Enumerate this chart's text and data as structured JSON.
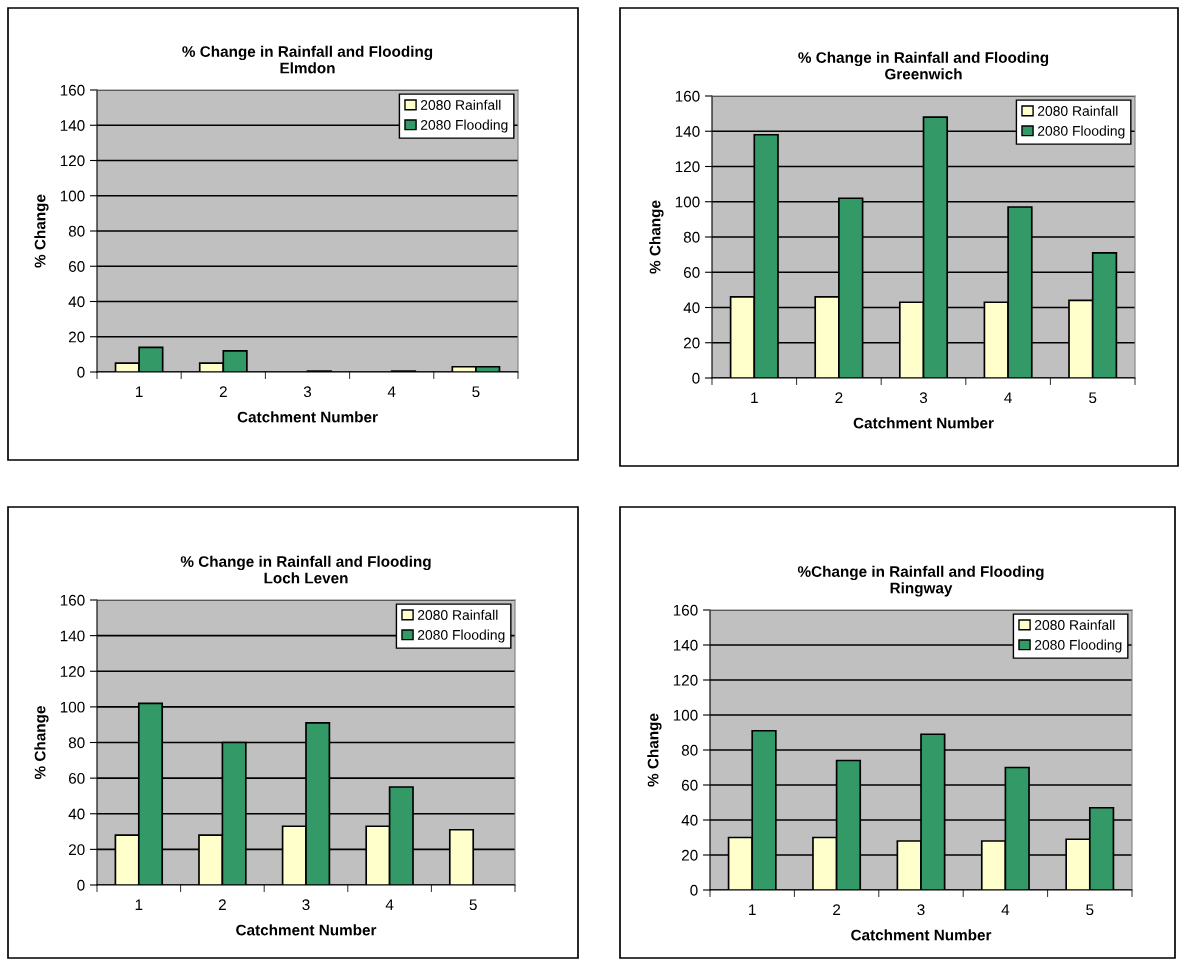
{
  "chart_data": [
    {
      "type": "bar",
      "title": "% Change in Rainfall and Flooding\nElmdon",
      "xlabel": "Catchment Number",
      "ylabel": "% Change",
      "categories": [
        "1",
        "2",
        "3",
        "4",
        "5"
      ],
      "series": [
        {
          "name": "2080 Rainfall",
          "color": "#ffffcc",
          "values": [
            5,
            5,
            null,
            null,
            3
          ]
        },
        {
          "name": "2080 Flooding",
          "color": "#339966",
          "values": [
            14,
            12,
            0.5,
            0.5,
            3
          ]
        }
      ],
      "ylim": [
        0,
        160
      ],
      "yticks": [
        0,
        20,
        40,
        60,
        80,
        100,
        120,
        140,
        160
      ],
      "grid": "y",
      "legend": "top right"
    },
    {
      "type": "bar",
      "title": "% Change in Rainfall and Flooding\nGreenwich",
      "xlabel": "Catchment Number",
      "ylabel": "% Change",
      "categories": [
        "1",
        "2",
        "3",
        "4",
        "5"
      ],
      "series": [
        {
          "name": "2080 Rainfall",
          "color": "#ffffcc",
          "values": [
            46,
            46,
            43,
            43,
            44
          ]
        },
        {
          "name": "2080 Flooding",
          "color": "#339966",
          "values": [
            138,
            102,
            148,
            97,
            71
          ]
        }
      ],
      "ylim": [
        0,
        160
      ],
      "yticks": [
        0,
        20,
        40,
        60,
        80,
        100,
        120,
        140,
        160
      ],
      "grid": "y",
      "legend": "top right"
    },
    {
      "type": "bar",
      "title": "% Change in Rainfall and Flooding\nLoch Leven",
      "xlabel": "Catchment Number",
      "ylabel": "% Change",
      "categories": [
        "1",
        "2",
        "3",
        "4",
        "5"
      ],
      "series": [
        {
          "name": "2080 Rainfall",
          "color": "#ffffcc",
          "values": [
            28,
            28,
            33,
            33,
            31
          ]
        },
        {
          "name": "2080 Flooding",
          "color": "#339966",
          "values": [
            102,
            80,
            91,
            55,
            null
          ]
        }
      ],
      "ylim": [
        0,
        160
      ],
      "yticks": [
        0,
        20,
        40,
        60,
        80,
        100,
        120,
        140,
        160
      ],
      "grid": "y",
      "legend": "top right"
    },
    {
      "type": "bar",
      "title": "%Change in Rainfall and Flooding\nRingway",
      "xlabel": "Catchment Number",
      "ylabel": "% Change",
      "categories": [
        "1",
        "2",
        "3",
        "4",
        "5"
      ],
      "series": [
        {
          "name": "2080 Rainfall",
          "color": "#ffffcc",
          "values": [
            30,
            30,
            28,
            28,
            29
          ]
        },
        {
          "name": "2080 Flooding",
          "color": "#339966",
          "values": [
            91,
            74,
            89,
            70,
            47
          ]
        }
      ],
      "ylim": [
        0,
        160
      ],
      "yticks": [
        0,
        20,
        40,
        60,
        80,
        100,
        120,
        140,
        160
      ],
      "grid": "y",
      "legend": "top right"
    }
  ]
}
